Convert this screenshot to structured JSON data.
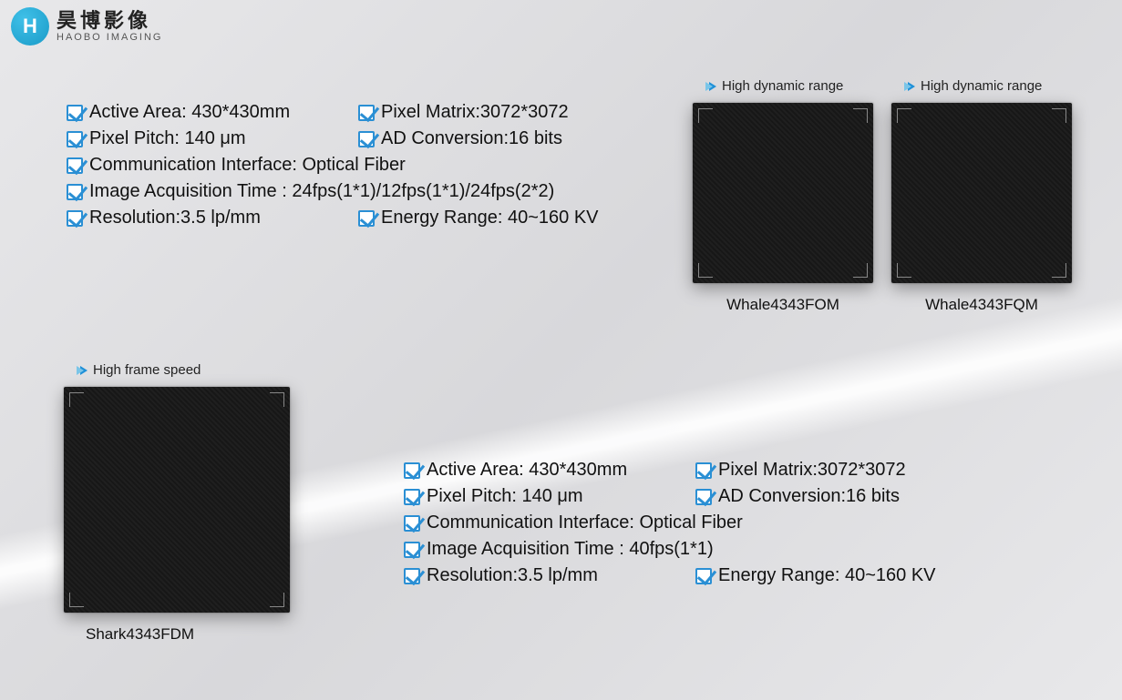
{
  "brand": {
    "glyph": "H",
    "cn": "昊博影像",
    "en": "HAOBO IMAGING"
  },
  "colors": {
    "accent": "#2a8fd4",
    "text": "#111111",
    "panel_bg": "#181818",
    "panel_stripe_a": "#1f1f1f",
    "panel_stripe_b": "#171717",
    "background_light": "#e8e8ea",
    "background_dark": "#d8d8db"
  },
  "specs_top": {
    "active_area": "Active Area: 430*430mm",
    "pixel_matrix": "Pixel Matrix:3072*3072",
    "pixel_pitch": "Pixel Pitch: 140 μm",
    "ad_conversion": "AD Conversion:16 bits",
    "comm_interface": "Communication Interface: Optical Fiber",
    "acq_time": "Image Acquisition Time : 24fps(1*1)/12fps(1*1)/24fps(2*2)",
    "resolution": "Resolution:3.5 lp/mm",
    "energy_range": "Energy Range: 40~160 KV"
  },
  "specs_bottom": {
    "active_area": "Active Area: 430*430mm",
    "pixel_matrix": "Pixel Matrix:3072*3072",
    "pixel_pitch": "Pixel Pitch: 140 μm",
    "ad_conversion": "AD Conversion:16 bits",
    "comm_interface": "Communication Interface: Optical Fiber",
    "acq_time": "Image Acquisition Time : 40fps(1*1)",
    "resolution": "Resolution:3.5 lp/mm",
    "energy_range": "Energy Range: 40~160 KV"
  },
  "products": {
    "p1": {
      "tag": "High dynamic range",
      "label": "Whale4343FOM"
    },
    "p2": {
      "tag": "High dynamic range",
      "label": "Whale4343FQM"
    },
    "p3": {
      "tag": "High frame speed",
      "label": "Shark4343FDM"
    }
  }
}
